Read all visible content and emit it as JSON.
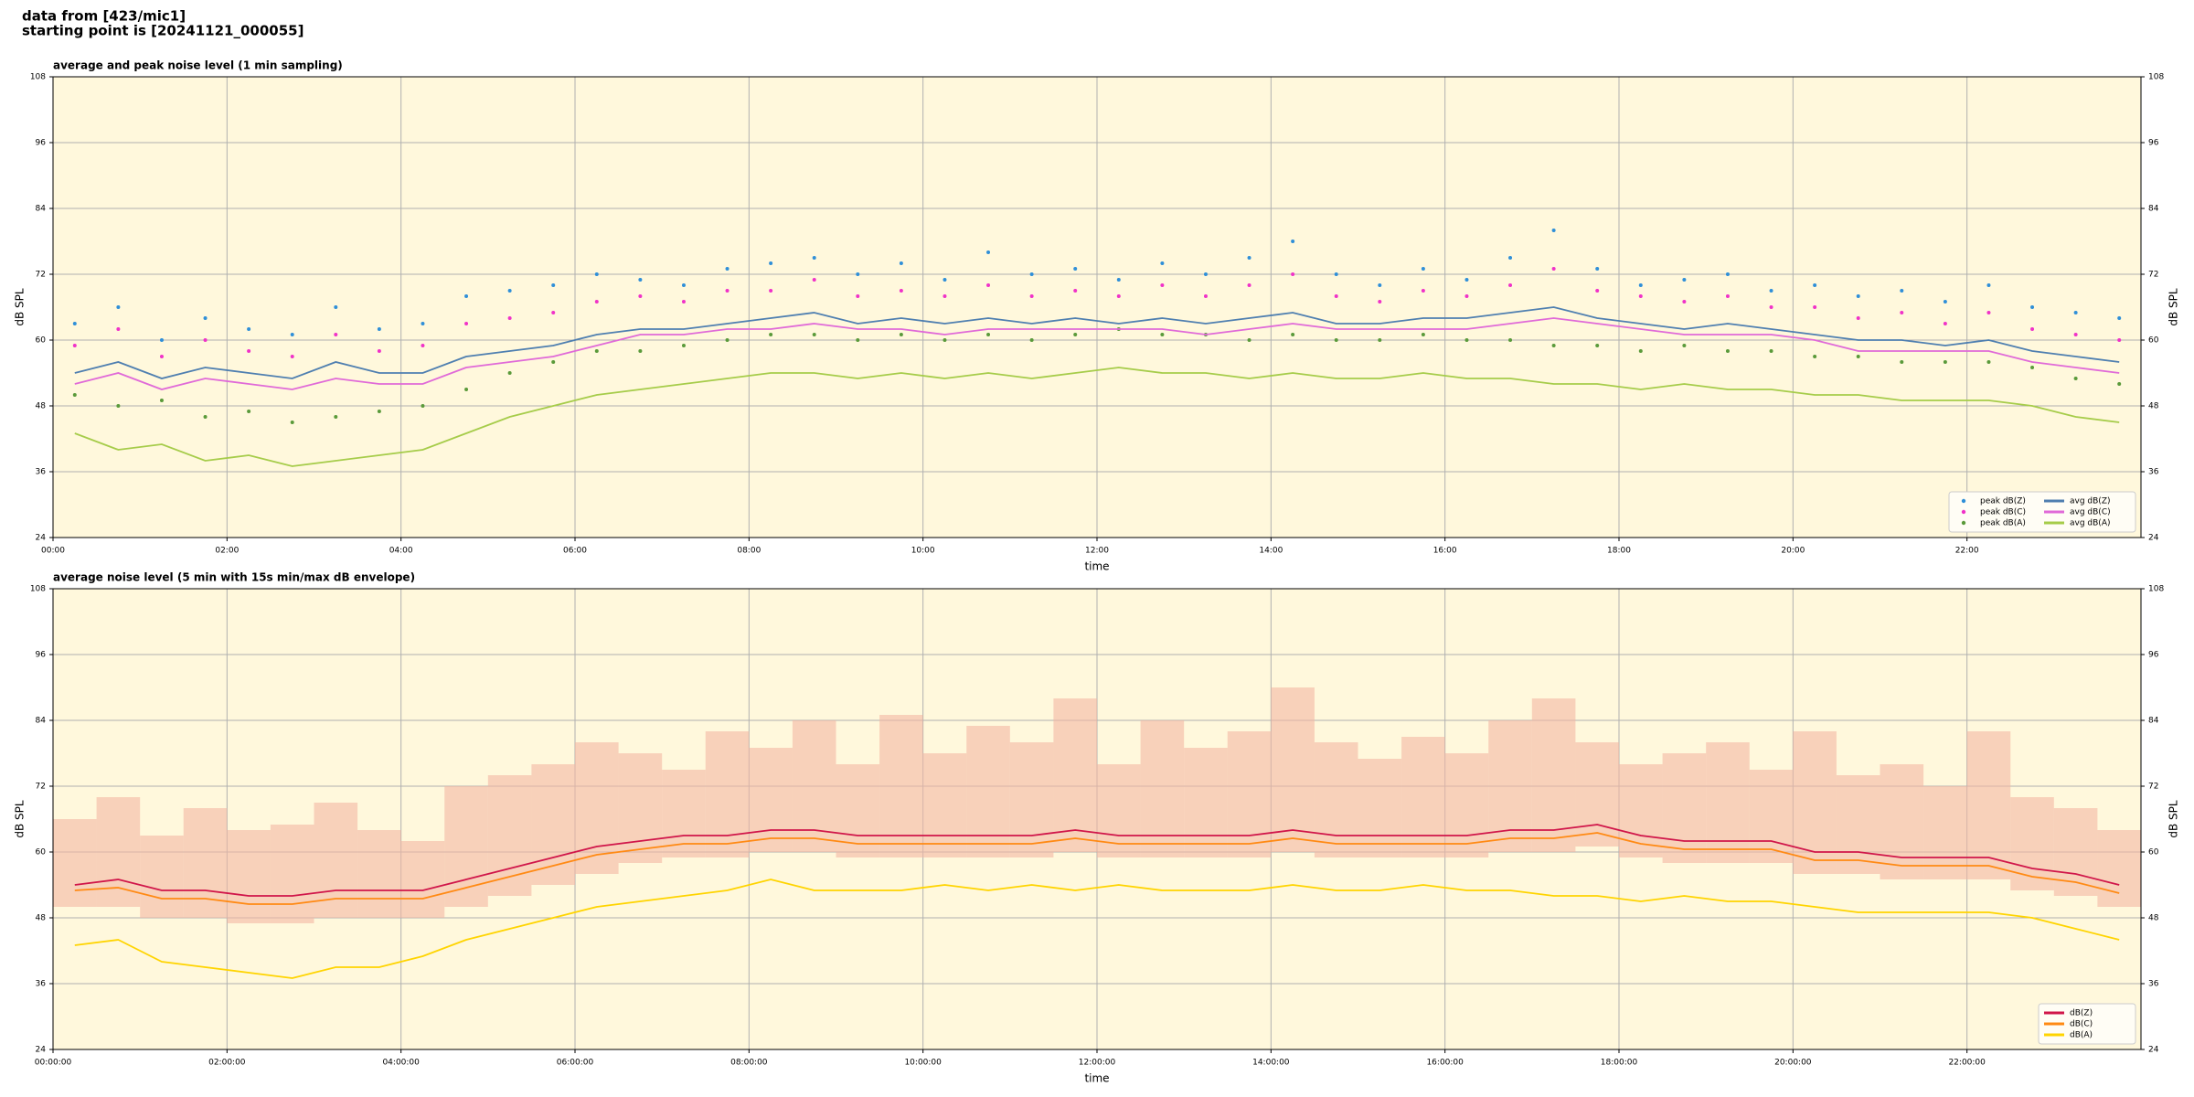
{
  "page": {
    "title_lines": [
      "data from [423/mic1]",
      "starting point is [20241121_000055]"
    ]
  },
  "chart_data": [
    {
      "type": "line",
      "title": "average and peak noise level (1 min sampling)",
      "x_label": "time",
      "y_label": "dB SPL",
      "x": [
        "00:00",
        "00:30",
        "01:00",
        "01:30",
        "02:00",
        "02:30",
        "03:00",
        "03:30",
        "04:00",
        "04:30",
        "05:00",
        "05:30",
        "06:00",
        "06:30",
        "07:00",
        "07:30",
        "08:00",
        "08:30",
        "09:00",
        "09:30",
        "10:00",
        "10:30",
        "11:00",
        "11:30",
        "12:00",
        "12:30",
        "13:00",
        "13:30",
        "14:00",
        "14:30",
        "15:00",
        "15:30",
        "16:00",
        "16:30",
        "17:00",
        "17:30",
        "18:00",
        "18:30",
        "19:00",
        "19:30",
        "20:00",
        "20:30",
        "21:00",
        "21:30",
        "22:00",
        "22:30",
        "23:00",
        "23:30"
      ],
      "xlim": [
        "00:00",
        "24:00"
      ],
      "xticks": [
        "00:00",
        "02:00",
        "04:00",
        "06:00",
        "08:00",
        "10:00",
        "12:00",
        "14:00",
        "16:00",
        "18:00",
        "20:00",
        "22:00"
      ],
      "ylim": [
        24,
        108
      ],
      "yticks": [
        24,
        36,
        48,
        60,
        72,
        84,
        96,
        108
      ],
      "grid": true,
      "legend": "lower right",
      "legend_columns": 2,
      "series": [
        {
          "name": "peak dB(Z)",
          "color": "#2f8fd8",
          "style": "markers",
          "values": [
            63,
            66,
            60,
            64,
            62,
            61,
            66,
            62,
            63,
            68,
            69,
            70,
            72,
            71,
            70,
            73,
            74,
            75,
            72,
            74,
            71,
            76,
            72,
            73,
            71,
            74,
            72,
            75,
            78,
            72,
            70,
            73,
            71,
            75,
            80,
            73,
            70,
            71,
            72,
            69,
            70,
            68,
            69,
            67,
            70,
            66,
            65,
            64
          ]
        },
        {
          "name": "peak dB(C)",
          "color": "#f032c8",
          "style": "markers",
          "values": [
            59,
            62,
            57,
            60,
            58,
            57,
            61,
            58,
            59,
            63,
            64,
            65,
            67,
            68,
            67,
            69,
            69,
            71,
            68,
            69,
            68,
            70,
            68,
            69,
            68,
            70,
            68,
            70,
            72,
            68,
            67,
            69,
            68,
            70,
            73,
            69,
            68,
            67,
            68,
            66,
            66,
            64,
            65,
            63,
            65,
            62,
            61,
            60
          ]
        },
        {
          "name": "peak dB(A)",
          "color": "#5a9a3a",
          "style": "markers",
          "values": [
            50,
            48,
            49,
            46,
            47,
            45,
            46,
            47,
            48,
            51,
            54,
            56,
            58,
            58,
            59,
            60,
            61,
            61,
            60,
            61,
            60,
            61,
            60,
            61,
            62,
            61,
            61,
            60,
            61,
            60,
            60,
            61,
            60,
            60,
            59,
            59,
            58,
            59,
            58,
            58,
            57,
            57,
            56,
            56,
            56,
            55,
            53,
            52
          ]
        },
        {
          "name": "avg dB(Z)",
          "color": "#4f7fb0",
          "style": "line",
          "values": [
            54,
            56,
            53,
            55,
            54,
            53,
            56,
            54,
            54,
            57,
            58,
            59,
            61,
            62,
            62,
            63,
            64,
            65,
            63,
            64,
            63,
            64,
            63,
            64,
            63,
            64,
            63,
            64,
            65,
            63,
            63,
            64,
            64,
            65,
            66,
            64,
            63,
            62,
            63,
            62,
            61,
            60,
            60,
            59,
            60,
            58,
            57,
            56
          ]
        },
        {
          "name": "avg dB(C)",
          "color": "#e06ad8",
          "style": "line",
          "values": [
            52,
            54,
            51,
            53,
            52,
            51,
            53,
            52,
            52,
            55,
            56,
            57,
            59,
            61,
            61,
            62,
            62,
            63,
            62,
            62,
            61,
            62,
            62,
            62,
            62,
            62,
            61,
            62,
            63,
            62,
            62,
            62,
            62,
            63,
            64,
            63,
            62,
            61,
            61,
            61,
            60,
            58,
            58,
            58,
            58,
            56,
            55,
            54
          ]
        },
        {
          "name": "avg dB(A)",
          "color": "#a6cc4a",
          "style": "line",
          "values": [
            43,
            40,
            41,
            38,
            39,
            37,
            38,
            39,
            40,
            43,
            46,
            48,
            50,
            51,
            52,
            53,
            54,
            54,
            53,
            54,
            53,
            54,
            53,
            54,
            55,
            54,
            54,
            53,
            54,
            53,
            53,
            54,
            53,
            53,
            52,
            52,
            51,
            52,
            51,
            51,
            50,
            50,
            49,
            49,
            49,
            48,
            46,
            45
          ]
        }
      ]
    },
    {
      "type": "line",
      "title": "average noise level (5 min with 15s min/max dB envelope)",
      "x_label": "time",
      "y_label": "dB SPL",
      "x": [
        "00:00:00",
        "00:30:00",
        "01:00:00",
        "01:30:00",
        "02:00:00",
        "02:30:00",
        "03:00:00",
        "03:30:00",
        "04:00:00",
        "04:30:00",
        "05:00:00",
        "05:30:00",
        "06:00:00",
        "06:30:00",
        "07:00:00",
        "07:30:00",
        "08:00:00",
        "08:30:00",
        "09:00:00",
        "09:30:00",
        "10:00:00",
        "10:30:00",
        "11:00:00",
        "11:30:00",
        "12:00:00",
        "12:30:00",
        "13:00:00",
        "13:30:00",
        "14:00:00",
        "14:30:00",
        "15:00:00",
        "15:30:00",
        "16:00:00",
        "16:30:00",
        "17:00:00",
        "17:30:00",
        "18:00:00",
        "18:30:00",
        "19:00:00",
        "19:30:00",
        "20:00:00",
        "20:30:00",
        "21:00:00",
        "21:30:00",
        "22:00:00",
        "22:30:00",
        "23:00:00",
        "23:30:00"
      ],
      "xlim": [
        "00:00:00",
        "24:00:00"
      ],
      "xticks": [
        "00:00:00",
        "02:00:00",
        "04:00:00",
        "06:00:00",
        "08:00:00",
        "10:00:00",
        "12:00:00",
        "14:00:00",
        "16:00:00",
        "18:00:00",
        "20:00:00",
        "22:00:00"
      ],
      "ylim": [
        24,
        108
      ],
      "yticks": [
        24,
        36,
        48,
        60,
        72,
        84,
        96,
        108
      ],
      "grid": true,
      "legend": "lower right",
      "legend_columns": 1,
      "envelope": {
        "color": "#f4b8a4",
        "low": [
          50,
          50,
          48,
          48,
          47,
          47,
          48,
          48,
          48,
          50,
          52,
          54,
          56,
          58,
          59,
          59,
          60,
          60,
          59,
          59,
          59,
          59,
          59,
          60,
          59,
          59,
          59,
          59,
          60,
          59,
          59,
          59,
          59,
          60,
          60,
          61,
          59,
          58,
          58,
          58,
          56,
          56,
          55,
          55,
          55,
          53,
          52,
          50
        ],
        "high": [
          66,
          70,
          63,
          68,
          64,
          65,
          69,
          64,
          62,
          72,
          74,
          76,
          80,
          78,
          75,
          82,
          79,
          84,
          76,
          85,
          78,
          83,
          80,
          88,
          76,
          84,
          79,
          82,
          90,
          80,
          77,
          81,
          78,
          84,
          88,
          80,
          76,
          78,
          80,
          75,
          82,
          74,
          76,
          72,
          82,
          70,
          68,
          64
        ]
      },
      "series": [
        {
          "name": "dB(Z)",
          "color": "#d0164a",
          "style": "line",
          "values": [
            54,
            55,
            53,
            53,
            52,
            52,
            53,
            53,
            53,
            55,
            57,
            59,
            61,
            62,
            63,
            63,
            64,
            64,
            63,
            63,
            63,
            63,
            63,
            64,
            63,
            63,
            63,
            63,
            64,
            63,
            63,
            63,
            63,
            64,
            64,
            65,
            63,
            62,
            62,
            62,
            60,
            60,
            59,
            59,
            59,
            57,
            56,
            54
          ]
        },
        {
          "name": "dB(C)",
          "color": "#ff8a14",
          "style": "line",
          "values": [
            53,
            53.5,
            51.5,
            51.5,
            50.5,
            50.5,
            51.5,
            51.5,
            51.5,
            53.5,
            55.5,
            57.5,
            59.5,
            60.5,
            61.5,
            61.5,
            62.5,
            62.5,
            61.5,
            61.5,
            61.5,
            61.5,
            61.5,
            62.5,
            61.5,
            61.5,
            61.5,
            61.5,
            62.5,
            61.5,
            61.5,
            61.5,
            61.5,
            62.5,
            62.5,
            63.5,
            61.5,
            60.5,
            60.5,
            60.5,
            58.5,
            58.5,
            57.5,
            57.5,
            57.5,
            55.5,
            54.5,
            52.5
          ]
        },
        {
          "name": "dB(A)",
          "color": "#ffd400",
          "style": "line",
          "values": [
            43,
            44,
            40,
            39,
            38,
            37,
            39,
            39,
            41,
            44,
            46,
            48,
            50,
            51,
            52,
            53,
            55,
            53,
            53,
            53,
            54,
            53,
            54,
            53,
            54,
            53,
            53,
            53,
            54,
            53,
            53,
            54,
            53,
            53,
            52,
            52,
            51,
            52,
            51,
            51,
            50,
            49,
            49,
            49,
            49,
            48,
            46,
            44
          ]
        }
      ]
    }
  ]
}
